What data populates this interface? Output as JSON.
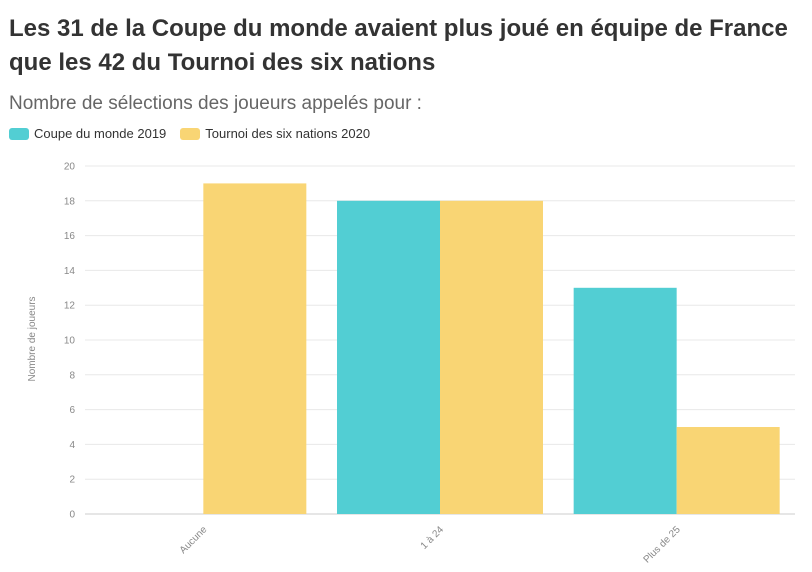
{
  "title": "Les 31 de la Coupe du monde avaient plus joué en équipe de France que les 42 du Tournoi des six nations",
  "subtitle": "Nombre de sélections des joueurs appelés pour :",
  "colors": {
    "coupe": "#52CED3",
    "tournoi": "#F9D574",
    "grid": "#e8e8e8"
  },
  "chart_data": {
    "type": "bar",
    "categories": [
      "Aucune",
      "1 à 24",
      "Plus de 25"
    ],
    "series": [
      {
        "name": "Coupe du monde 2019",
        "values": [
          0,
          18,
          13
        ],
        "color": "#52CED3"
      },
      {
        "name": "Tournoi des six nations 2020",
        "values": [
          19,
          18,
          5
        ],
        "color": "#F9D574"
      }
    ],
    "ylabel": "Nombre de joueurs",
    "ylim": [
      0,
      20
    ],
    "yticks": [
      0,
      2,
      4,
      6,
      8,
      10,
      12,
      14,
      16,
      18,
      20
    ],
    "grid": true,
    "legend": "top-left"
  }
}
